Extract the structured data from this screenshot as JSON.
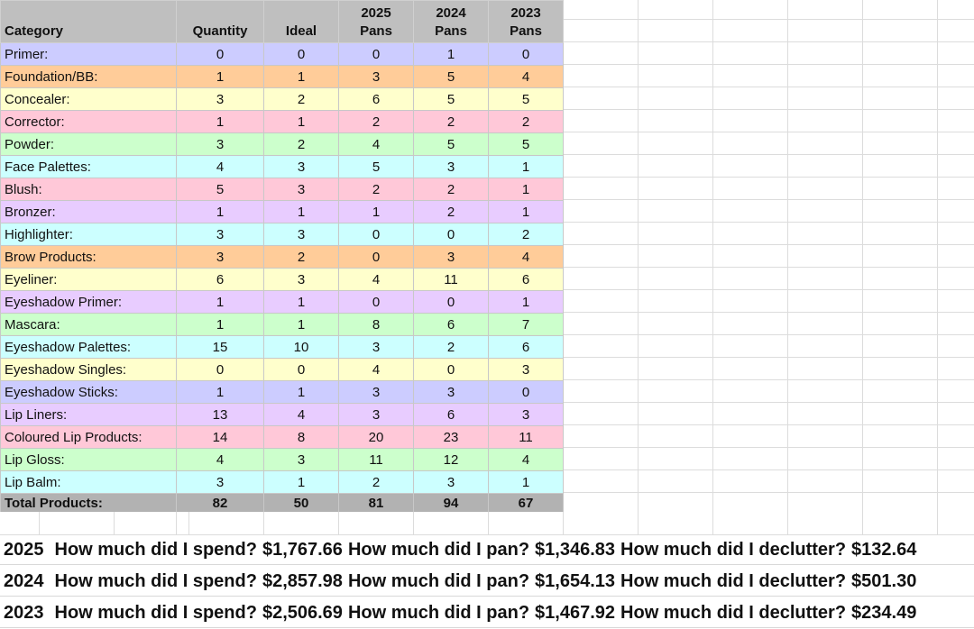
{
  "headers": {
    "category": "Category",
    "quantity": "Quantity",
    "ideal": "Ideal",
    "y2025": [
      "2025",
      "Pans"
    ],
    "y2024": [
      "2024",
      "Pans"
    ],
    "y2023": [
      "2023",
      "Pans"
    ]
  },
  "colors": {
    "periwinkle": "#ccccff",
    "peach": "#ffcc99",
    "yellow": "#ffffcc",
    "pink": "#ffc8d8",
    "green": "#ccffcc",
    "cyan": "#ccffff",
    "lavender": "#e8ccff",
    "header": "#bfbfbf",
    "total": "#b2b2b2"
  },
  "rows": [
    {
      "category": "Primer:",
      "quantity": "0",
      "ideal": "0",
      "p2025": "0",
      "p2024": "1",
      "p2023": "0",
      "color": "periwinkle"
    },
    {
      "category": "Foundation/BB:",
      "quantity": "1",
      "ideal": "1",
      "p2025": "3",
      "p2024": "5",
      "p2023": "4",
      "color": "peach"
    },
    {
      "category": "Concealer:",
      "quantity": "3",
      "ideal": "2",
      "p2025": "6",
      "p2024": "5",
      "p2023": "5",
      "color": "yellow"
    },
    {
      "category": "Corrector:",
      "quantity": "1",
      "ideal": "1",
      "p2025": "2",
      "p2024": "2",
      "p2023": "2",
      "color": "pink"
    },
    {
      "category": "Powder:",
      "quantity": "3",
      "ideal": "2",
      "p2025": "4",
      "p2024": "5",
      "p2023": "5",
      "color": "green"
    },
    {
      "category": "Face Palettes:",
      "quantity": "4",
      "ideal": "3",
      "p2025": "5",
      "p2024": "3",
      "p2023": "1",
      "color": "cyan"
    },
    {
      "category": "Blush:",
      "quantity": "5",
      "ideal": "3",
      "p2025": "2",
      "p2024": "2",
      "p2023": "1",
      "color": "pink"
    },
    {
      "category": "Bronzer:",
      "quantity": "1",
      "ideal": "1",
      "p2025": "1",
      "p2024": "2",
      "p2023": "1",
      "color": "lavender"
    },
    {
      "category": "Highlighter:",
      "quantity": "3",
      "ideal": "3",
      "p2025": "0",
      "p2024": "0",
      "p2023": "2",
      "color": "cyan"
    },
    {
      "category": "Brow Products:",
      "quantity": "3",
      "ideal": "2",
      "p2025": "0",
      "p2024": "3",
      "p2023": "4",
      "color": "peach"
    },
    {
      "category": "Eyeliner:",
      "quantity": "6",
      "ideal": "3",
      "p2025": "4",
      "p2024": "11",
      "p2023": "6",
      "color": "yellow"
    },
    {
      "category": "Eyeshadow Primer:",
      "quantity": "1",
      "ideal": "1",
      "p2025": "0",
      "p2024": "0",
      "p2023": "1",
      "color": "lavender"
    },
    {
      "category": "Mascara:",
      "quantity": "1",
      "ideal": "1",
      "p2025": "8",
      "p2024": "6",
      "p2023": "7",
      "color": "green"
    },
    {
      "category": "Eyeshadow Palettes:",
      "quantity": "15",
      "ideal": "10",
      "p2025": "3",
      "p2024": "2",
      "p2023": "6",
      "color": "cyan"
    },
    {
      "category": "Eyeshadow Singles:",
      "quantity": "0",
      "ideal": "0",
      "p2025": "4",
      "p2024": "0",
      "p2023": "3",
      "color": "yellow"
    },
    {
      "category": "Eyeshadow Sticks:",
      "quantity": "1",
      "ideal": "1",
      "p2025": "3",
      "p2024": "3",
      "p2023": "0",
      "color": "periwinkle"
    },
    {
      "category": "Lip Liners:",
      "quantity": "13",
      "ideal": "4",
      "p2025": "3",
      "p2024": "6",
      "p2023": "3",
      "color": "lavender"
    },
    {
      "category": "Coloured Lip Products:",
      "quantity": "14",
      "ideal": "8",
      "p2025": "20",
      "p2024": "23",
      "p2023": "11",
      "color": "pink"
    },
    {
      "category": "Lip Gloss:",
      "quantity": "4",
      "ideal": "3",
      "p2025": "11",
      "p2024": "12",
      "p2023": "4",
      "color": "green"
    },
    {
      "category": "Lip Balm:",
      "quantity": "3",
      "ideal": "1",
      "p2025": "2",
      "p2024": "3",
      "p2023": "1",
      "color": "cyan"
    }
  ],
  "total": {
    "category": "Total Products:",
    "quantity": "82",
    "ideal": "50",
    "p2025": "81",
    "p2024": "94",
    "p2023": "67"
  },
  "summary": [
    {
      "year": "2025",
      "spend_q": "How much did I spend?",
      "spend": "$1,767.66",
      "pan_q": "How much did I pan?",
      "pan": "$1,346.83",
      "declutter_q": "How much did I declutter?",
      "declutter": "$132.64"
    },
    {
      "year": "2024",
      "spend_q": "How much did I spend?",
      "spend": "$2,857.98",
      "pan_q": "How much did I pan?",
      "pan": "$1,654.13",
      "declutter_q": "How much did I declutter?",
      "declutter": "$501.30"
    },
    {
      "year": "2023",
      "spend_q": "How much did I spend?",
      "spend": "$2,506.69",
      "pan_q": "How much did I pan?",
      "pan": "$1,467.92",
      "declutter_q": "How much did I declutter?",
      "declutter": "$234.49"
    }
  ]
}
